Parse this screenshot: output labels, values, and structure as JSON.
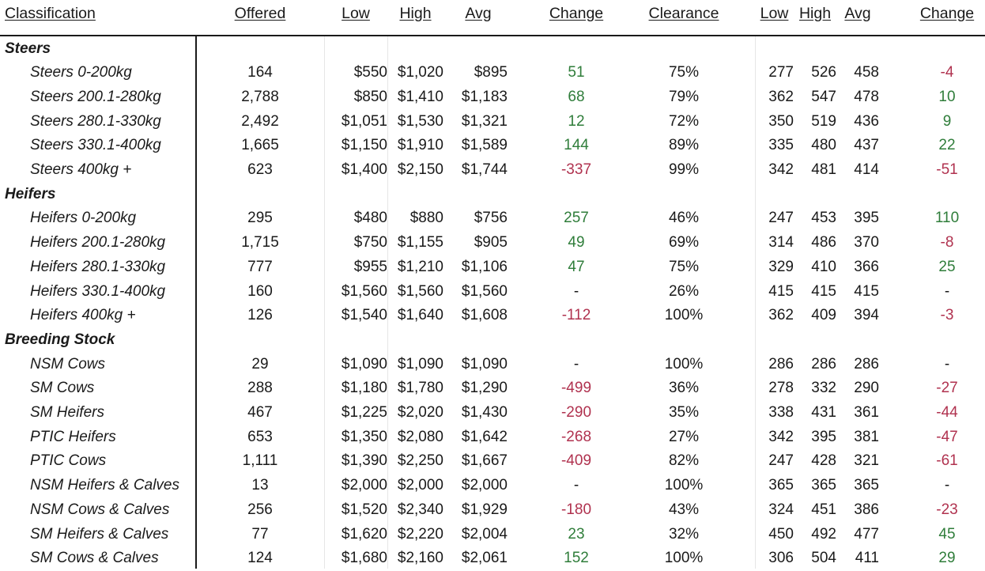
{
  "headers": {
    "classification": "Classification",
    "offered": "Offered",
    "low": "Low",
    "high": "High",
    "avg": "Avg",
    "change": "Change",
    "clearance": "Clearance",
    "low2": "Low",
    "high2": "High",
    "avg2": "Avg",
    "change2": "Change"
  },
  "rows": [
    {
      "type": "section",
      "label": "Steers"
    },
    {
      "type": "item",
      "label": "Steers 0-200kg",
      "offered": "164",
      "low": "$550",
      "high": "$1,020",
      "avg": "$895",
      "change": "51",
      "change_dir": "pos",
      "clearance": "75%",
      "low2": "277",
      "high2": "526",
      "avg2": "458",
      "change2": "-4",
      "change2_dir": "neg"
    },
    {
      "type": "item",
      "label": "Steers 200.1-280kg",
      "offered": "2,788",
      "low": "$850",
      "high": "$1,410",
      "avg": "$1,183",
      "change": "68",
      "change_dir": "pos",
      "clearance": "79%",
      "low2": "362",
      "high2": "547",
      "avg2": "478",
      "change2": "10",
      "change2_dir": "pos"
    },
    {
      "type": "item",
      "label": "Steers 280.1-330kg",
      "offered": "2,492",
      "low": "$1,051",
      "high": "$1,530",
      "avg": "$1,321",
      "change": "12",
      "change_dir": "pos",
      "clearance": "72%",
      "low2": "350",
      "high2": "519",
      "avg2": "436",
      "change2": "9",
      "change2_dir": "pos"
    },
    {
      "type": "item",
      "label": "Steers 330.1-400kg",
      "offered": "1,665",
      "low": "$1,150",
      "high": "$1,910",
      "avg": "$1,589",
      "change": "144",
      "change_dir": "pos",
      "clearance": "89%",
      "low2": "335",
      "high2": "480",
      "avg2": "437",
      "change2": "22",
      "change2_dir": "pos"
    },
    {
      "type": "item",
      "label": "Steers 400kg +",
      "offered": "623",
      "low": "$1,400",
      "high": "$2,150",
      "avg": "$1,744",
      "change": "-337",
      "change_dir": "neg",
      "clearance": "99%",
      "low2": "342",
      "high2": "481",
      "avg2": "414",
      "change2": "-51",
      "change2_dir": "neg"
    },
    {
      "type": "section",
      "label": "Heifers"
    },
    {
      "type": "item",
      "label": "Heifers 0-200kg",
      "offered": "295",
      "low": "$480",
      "high": "$880",
      "avg": "$756",
      "change": "257",
      "change_dir": "pos",
      "clearance": "46%",
      "low2": "247",
      "high2": "453",
      "avg2": "395",
      "change2": "110",
      "change2_dir": "pos"
    },
    {
      "type": "item",
      "label": "Heifers 200.1-280kg",
      "offered": "1,715",
      "low": "$750",
      "high": "$1,155",
      "avg": "$905",
      "change": "49",
      "change_dir": "pos",
      "clearance": "69%",
      "low2": "314",
      "high2": "486",
      "avg2": "370",
      "change2": "-8",
      "change2_dir": "neg"
    },
    {
      "type": "item",
      "label": "Heifers 280.1-330kg",
      "offered": "777",
      "low": "$955",
      "high": "$1,210",
      "avg": "$1,106",
      "change": "47",
      "change_dir": "pos",
      "clearance": "75%",
      "low2": "329",
      "high2": "410",
      "avg2": "366",
      "change2": "25",
      "change2_dir": "pos"
    },
    {
      "type": "item",
      "label": "Heifers 330.1-400kg",
      "offered": "160",
      "low": "$1,560",
      "high": "$1,560",
      "avg": "$1,560",
      "change": "-",
      "change_dir": "neutral",
      "clearance": "26%",
      "low2": "415",
      "high2": "415",
      "avg2": "415",
      "change2": "-",
      "change2_dir": "neutral"
    },
    {
      "type": "item",
      "label": "Heifers 400kg +",
      "offered": "126",
      "low": "$1,540",
      "high": "$1,640",
      "avg": "$1,608",
      "change": "-112",
      "change_dir": "neg",
      "clearance": "100%",
      "low2": "362",
      "high2": "409",
      "avg2": "394",
      "change2": "-3",
      "change2_dir": "neg"
    },
    {
      "type": "section",
      "label": "Breeding Stock"
    },
    {
      "type": "item",
      "label": "NSM Cows",
      "offered": "29",
      "low": "$1,090",
      "high": "$1,090",
      "avg": "$1,090",
      "change": "-",
      "change_dir": "neutral",
      "clearance": "100%",
      "low2": "286",
      "high2": "286",
      "avg2": "286",
      "change2": "-",
      "change2_dir": "neutral"
    },
    {
      "type": "item",
      "label": "SM Cows",
      "offered": "288",
      "low": "$1,180",
      "high": "$1,780",
      "avg": "$1,290",
      "change": "-499",
      "change_dir": "neg",
      "clearance": "36%",
      "low2": "278",
      "high2": "332",
      "avg2": "290",
      "change2": "-27",
      "change2_dir": "neg"
    },
    {
      "type": "item",
      "label": "SM Heifers",
      "offered": "467",
      "low": "$1,225",
      "high": "$2,020",
      "avg": "$1,430",
      "change": "-290",
      "change_dir": "neg",
      "clearance": "35%",
      "low2": "338",
      "high2": "431",
      "avg2": "361",
      "change2": "-44",
      "change2_dir": "neg"
    },
    {
      "type": "item",
      "label": "PTIC Heifers",
      "offered": "653",
      "low": "$1,350",
      "high": "$2,080",
      "avg": "$1,642",
      "change": "-268",
      "change_dir": "neg",
      "clearance": "27%",
      "low2": "342",
      "high2": "395",
      "avg2": "381",
      "change2": "-47",
      "change2_dir": "neg"
    },
    {
      "type": "item",
      "label": "PTIC Cows",
      "offered": "1,111",
      "low": "$1,390",
      "high": "$2,250",
      "avg": "$1,667",
      "change": "-409",
      "change_dir": "neg",
      "clearance": "82%",
      "low2": "247",
      "high2": "428",
      "avg2": "321",
      "change2": "-61",
      "change2_dir": "neg"
    },
    {
      "type": "item",
      "label": "NSM Heifers & Calves",
      "offered": "13",
      "low": "$2,000",
      "high": "$2,000",
      "avg": "$2,000",
      "change": "-",
      "change_dir": "neutral",
      "clearance": "100%",
      "low2": "365",
      "high2": "365",
      "avg2": "365",
      "change2": "-",
      "change2_dir": "neutral"
    },
    {
      "type": "item",
      "label": "NSM Cows & Calves",
      "offered": "256",
      "low": "$1,520",
      "high": "$2,340",
      "avg": "$1,929",
      "change": "-180",
      "change_dir": "neg",
      "clearance": "43%",
      "low2": "324",
      "high2": "451",
      "avg2": "386",
      "change2": "-23",
      "change2_dir": "neg"
    },
    {
      "type": "item",
      "label": "SM Heifers & Calves",
      "offered": "77",
      "low": "$1,620",
      "high": "$2,220",
      "avg": "$2,004",
      "change": "23",
      "change_dir": "pos",
      "clearance": "32%",
      "low2": "450",
      "high2": "492",
      "avg2": "477",
      "change2": "45",
      "change2_dir": "pos"
    },
    {
      "type": "item",
      "label": "SM Cows & Calves",
      "offered": "124",
      "low": "$1,680",
      "high": "$2,160",
      "avg": "$2,061",
      "change": "152",
      "change_dir": "pos",
      "clearance": "100%",
      "low2": "306",
      "high2": "504",
      "avg2": "411",
      "change2": "29",
      "change2_dir": "pos"
    }
  ],
  "colors": {
    "positive": "#2f7d3a",
    "negative": "#b0324f",
    "text": "#1a1a1a"
  }
}
